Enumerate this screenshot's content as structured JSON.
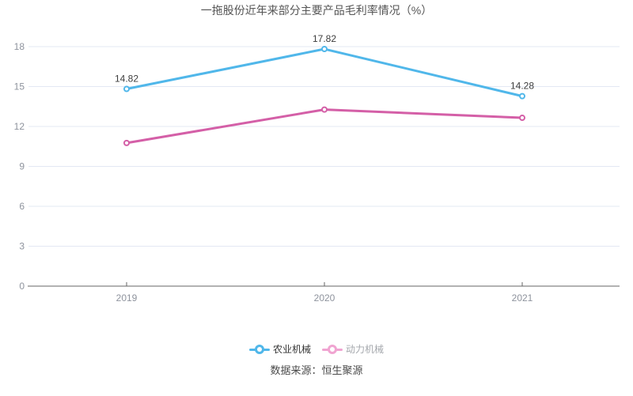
{
  "title": "一拖股份近年来部分主要产品毛利率情况（%）",
  "source": "数据来源：恒生聚源",
  "colors": {
    "series_blue": "#50b7ea",
    "series_pink": "#d45fa7",
    "grid_line": "#e3e8f3",
    "axis_line": "#666666",
    "axis_label": "#8e939d",
    "data_label": "#3c3c3c",
    "title_text": "#555555"
  },
  "legend": {
    "items": [
      {
        "label": "农业机械",
        "marker_color": "#50b7ea",
        "label_color": "#333333"
      },
      {
        "label": "动力机械",
        "marker_color": "#f0a4d1",
        "label_color": "#a5a8ad"
      }
    ]
  },
  "chart_data": {
    "type": "line",
    "title": "一拖股份近年来部分主要产品毛利率情况（%）",
    "categories": [
      "2019",
      "2020",
      "2021"
    ],
    "series": [
      {
        "name": "农业机械",
        "values": [
          14.82,
          17.82,
          14.28
        ],
        "labels": [
          "14.82",
          "17.82",
          "14.28"
        ],
        "show_labels": true,
        "color": "#50b7ea"
      },
      {
        "name": "动力机械",
        "values": [
          10.76,
          13.27,
          12.65
        ],
        "labels": [],
        "show_labels": false,
        "color": "#d45fa7"
      }
    ],
    "xlabel": "",
    "ylabel": "",
    "ylim": [
      0,
      18
    ],
    "yticks": [
      0,
      3,
      6,
      9,
      12,
      15,
      18
    ],
    "grid": true,
    "legend_position": "bottom",
    "note": "数据来源：恒生聚源"
  }
}
